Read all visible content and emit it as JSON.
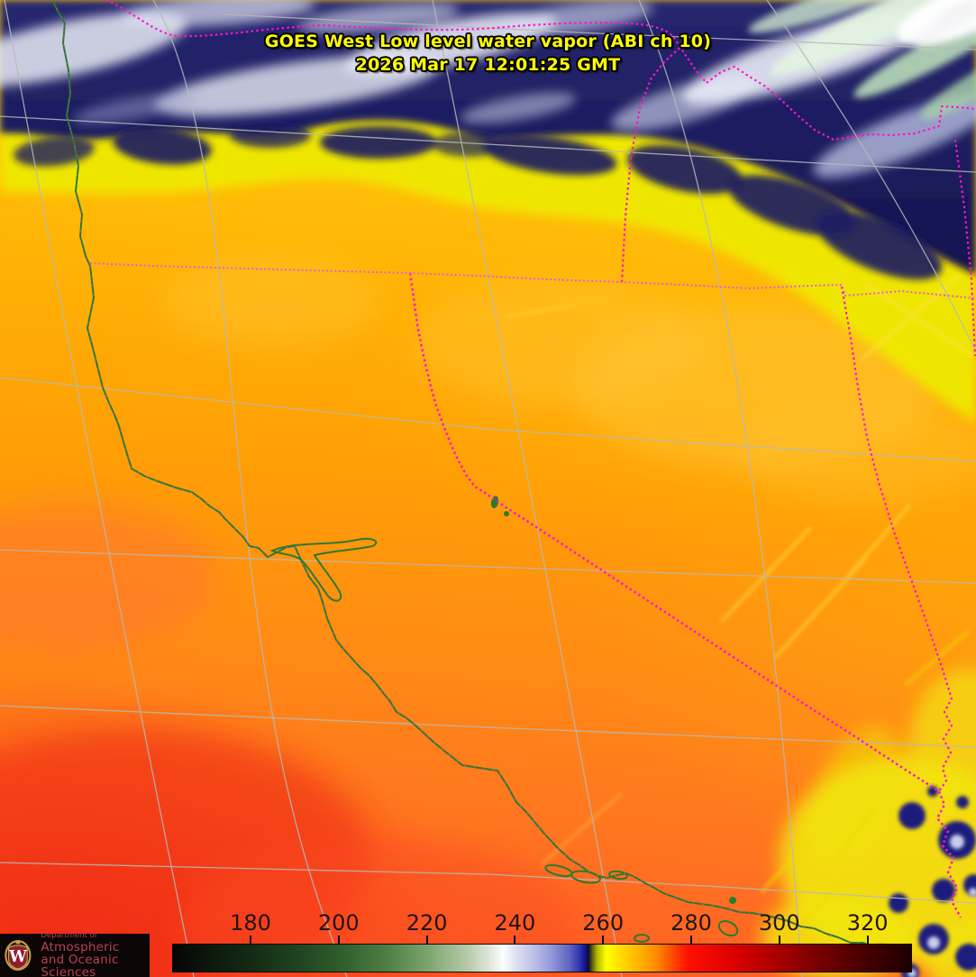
{
  "header": {
    "title_line1": "GOES West Low level water vapor (ABI ch 10)",
    "title_line2": "2026 Mar 17  12:01:25 GMT",
    "text_color": "#ffff00"
  },
  "colorbar": {
    "tick_labels": [
      "180",
      "200",
      "220",
      "240",
      "260",
      "280",
      "300",
      "320"
    ],
    "tick_color": "#0c0c0c",
    "label_color": "#221414",
    "gradient_stops": [
      [
        0.0,
        "#050505"
      ],
      [
        0.06,
        "#0e1c0e"
      ],
      [
        0.105,
        "#142a14"
      ],
      [
        0.17,
        "#1f4420"
      ],
      [
        0.224,
        "#2e5c2b"
      ],
      [
        0.29,
        "#4e7f44"
      ],
      [
        0.343,
        "#7aa36c"
      ],
      [
        0.4,
        "#b7cbaa"
      ],
      [
        0.435,
        "#e9ece4"
      ],
      [
        0.447,
        "#ffffff"
      ],
      [
        0.462,
        "#e2e4f2"
      ],
      [
        0.49,
        "#b9bee6"
      ],
      [
        0.515,
        "#8e94d6"
      ],
      [
        0.538,
        "#5c62c0"
      ],
      [
        0.551,
        "#2f34ac"
      ],
      [
        0.558,
        "#14149a"
      ],
      [
        0.563,
        "#0d0d30"
      ],
      [
        0.568,
        "#5c5c10"
      ],
      [
        0.575,
        "#b9b900"
      ],
      [
        0.587,
        "#ffff00"
      ],
      [
        0.611,
        "#ffd400"
      ],
      [
        0.641,
        "#ffa300"
      ],
      [
        0.655,
        "#ff8a00"
      ],
      [
        0.67,
        "#ff5e00"
      ],
      [
        0.685,
        "#ff3000"
      ],
      [
        0.7,
        "#ff0f00"
      ],
      [
        0.76,
        "#dd0000"
      ],
      [
        0.819,
        "#a80000"
      ],
      [
        0.879,
        "#740000"
      ],
      [
        0.938,
        "#460000"
      ],
      [
        1.0,
        "#1e0000"
      ]
    ]
  },
  "logo": {
    "dept_prefix": "Department of",
    "dept_line1": "Atmospheric",
    "dept_line2": "and Oceanic Sciences",
    "monogram": "W",
    "text_color": "#b8424e",
    "crest_red": "#8f1f30",
    "crest_gold": "#c9a14a"
  },
  "map_legend_colors": {
    "state_border": "#ff14cc",
    "state_border_light": "#e85ad8",
    "coastline": "#2c7a2e",
    "graticule": "#b7bab6",
    "cold_cloud": "#1d1d66",
    "very_cold_cloud_green": "#b9dcb9",
    "moist_warm_orange": "#ff9805",
    "dry_red": "#f93b12",
    "yellow_transition": "#efe906"
  }
}
